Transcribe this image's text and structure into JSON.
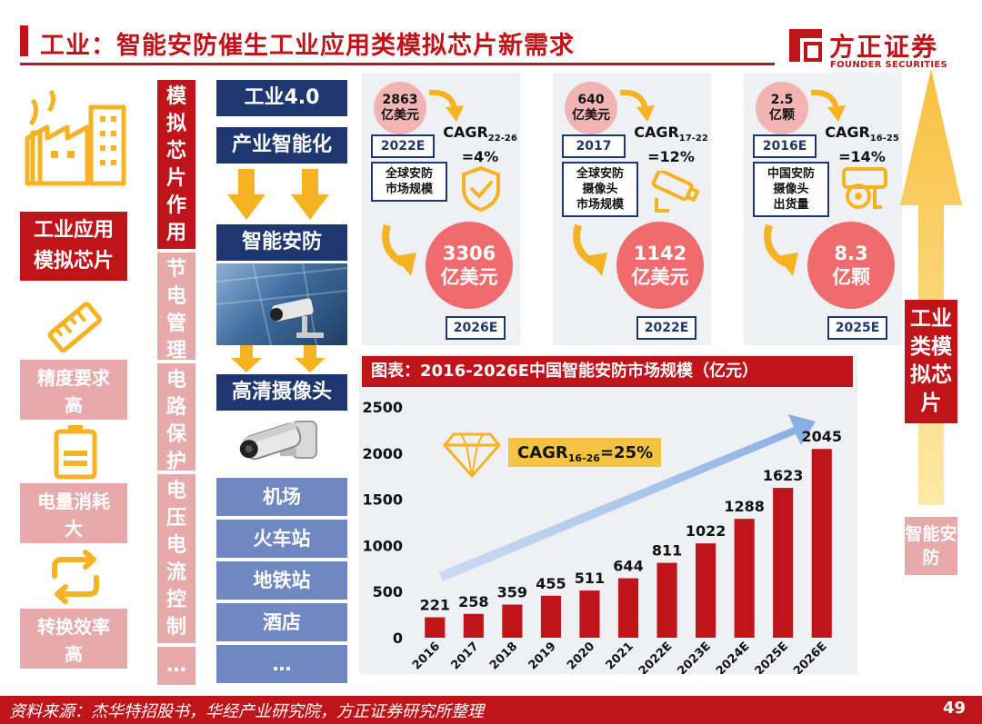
{
  "header": {
    "title": "工业：智能安防催生工业应用类模拟芯片新需求",
    "logo_name": "方正证券",
    "logo_sub": "FOUNDER SECURITIES"
  },
  "left": {
    "main_tag": [
      "工业应用",
      "模拟芯片"
    ],
    "items": [
      {
        "icon": "ruler-icon",
        "lines": [
          "精度要求",
          "高"
        ]
      },
      {
        "icon": "battery-icon",
        "lines": [
          "电量消耗",
          "大"
        ]
      },
      {
        "icon": "convert-arrows-icon",
        "lines": [
          "转换效率",
          "高"
        ]
      }
    ]
  },
  "vertical": {
    "main": "模拟芯片作用",
    "subs": [
      "节电管理",
      "电路保护",
      "电压电流控制",
      "…"
    ]
  },
  "flow": {
    "top": [
      "工业4.0",
      "产业智能化"
    ],
    "middle": "智能安防",
    "camera": "高清摄像头",
    "scenes": [
      "机场",
      "火车站",
      "地铁站",
      "酒店",
      "…"
    ]
  },
  "panels": [
    {
      "start_value": [
        "2863",
        "亿美元"
      ],
      "start_year": "2022E",
      "cagr_base": "CAGR",
      "cagr_sub": "22-26",
      "cagr_value": "=4%",
      "desc": [
        "全球安防",
        "市场规模"
      ],
      "icon": "shield-check-icon",
      "end_value": [
        "3306",
        "亿美元"
      ],
      "end_year": "2026E"
    },
    {
      "start_value": [
        "640",
        "亿美元"
      ],
      "start_year": "2017",
      "cagr_base": "CAGR",
      "cagr_sub": "17-22",
      "cagr_value": "=12%",
      "desc": [
        "全球安防",
        "摄像头",
        "市场规模"
      ],
      "icon": "cctv-camera-icon",
      "end_value": [
        "1142",
        "亿美元"
      ],
      "end_year": "2022E"
    },
    {
      "start_value": [
        "2.5",
        "亿颗"
      ],
      "start_year": "2016E",
      "cagr_base": "CAGR",
      "cagr_sub": "16-25",
      "cagr_value": "=14%",
      "desc": [
        "中国安防",
        "摄像头",
        "出货量"
      ],
      "icon": "cctv-camera-icon",
      "end_value": [
        "8.3",
        "亿颗"
      ],
      "end_year": "2025E"
    }
  ],
  "chart_data": {
    "type": "bar",
    "title": "图表：2016-2026E中国智能安防市场规模（亿元）",
    "categories": [
      "2016",
      "2017",
      "2018",
      "2019",
      "2020",
      "2021",
      "2022E",
      "2023E",
      "2024E",
      "2025E",
      "2026E"
    ],
    "values": [
      221,
      258,
      359,
      455,
      511,
      644,
      811,
      1022,
      1288,
      1623,
      2045
    ],
    "yticks": [
      0,
      500,
      1000,
      1500,
      2000,
      2500
    ],
    "ylim": [
      0,
      2500
    ],
    "bar_color": "#c0141b",
    "annotation": {
      "base": "CAGR",
      "sub": "16-26",
      "value": "=25%"
    },
    "grid": false
  },
  "right": {
    "main": "工业类模拟芯片",
    "sub": "智能安防"
  },
  "footer": {
    "source": "资料来源：杰华特招股书，华经产业研究院，方正证券研究所整理",
    "page": "49"
  },
  "colors": {
    "brand_red": "#c0141b",
    "navy": "#1e3770",
    "light_blue": "#6f88c2",
    "pink": "#e8a9aa",
    "coral": "#ef6b6d",
    "orange": "#f5b323"
  }
}
